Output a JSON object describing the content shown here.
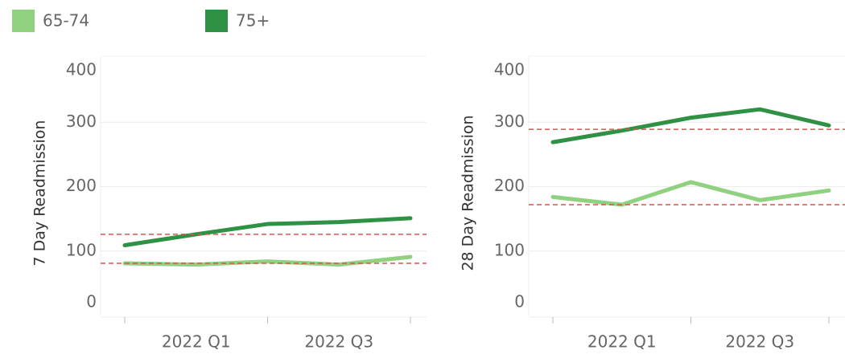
{
  "chart_data": [
    {
      "type": "line",
      "ylabel": "7 Day Readmission",
      "categories": [
        null,
        "2022 Q1",
        null,
        "2022 Q3",
        null
      ],
      "series": [
        {
          "name": "65-74",
          "color": "#8fd17f",
          "values": [
            81,
            79,
            84,
            79,
            91
          ]
        },
        {
          "name": "75+",
          "color": "#2e9144",
          "values": [
            109,
            126,
            142,
            145,
            151
          ]
        }
      ],
      "reference_lines": [
        {
          "value": 126,
          "color": "#d9534f"
        },
        {
          "value": 81,
          "color": "#d9534f"
        }
      ],
      "ylim": [
        0,
        400
      ],
      "yticks": [
        0,
        100,
        200,
        300,
        400
      ],
      "grid": true
    },
    {
      "type": "line",
      "ylabel": "28 Day Readmission",
      "categories": [
        null,
        "2022 Q1",
        null,
        "2022 Q3",
        null
      ],
      "series": [
        {
          "name": "65-74",
          "color": "#8fd17f",
          "values": [
            184,
            172,
            207,
            179,
            194
          ]
        },
        {
          "name": "75+",
          "color": "#2e9144",
          "values": [
            269,
            287,
            307,
            320,
            295
          ]
        }
      ],
      "reference_lines": [
        {
          "value": 289,
          "color": "#d9534f"
        },
        {
          "value": 172,
          "color": "#d9534f"
        }
      ],
      "ylim": [
        0,
        400
      ],
      "yticks": [
        0,
        100,
        200,
        300,
        400
      ],
      "grid": true
    }
  ]
}
